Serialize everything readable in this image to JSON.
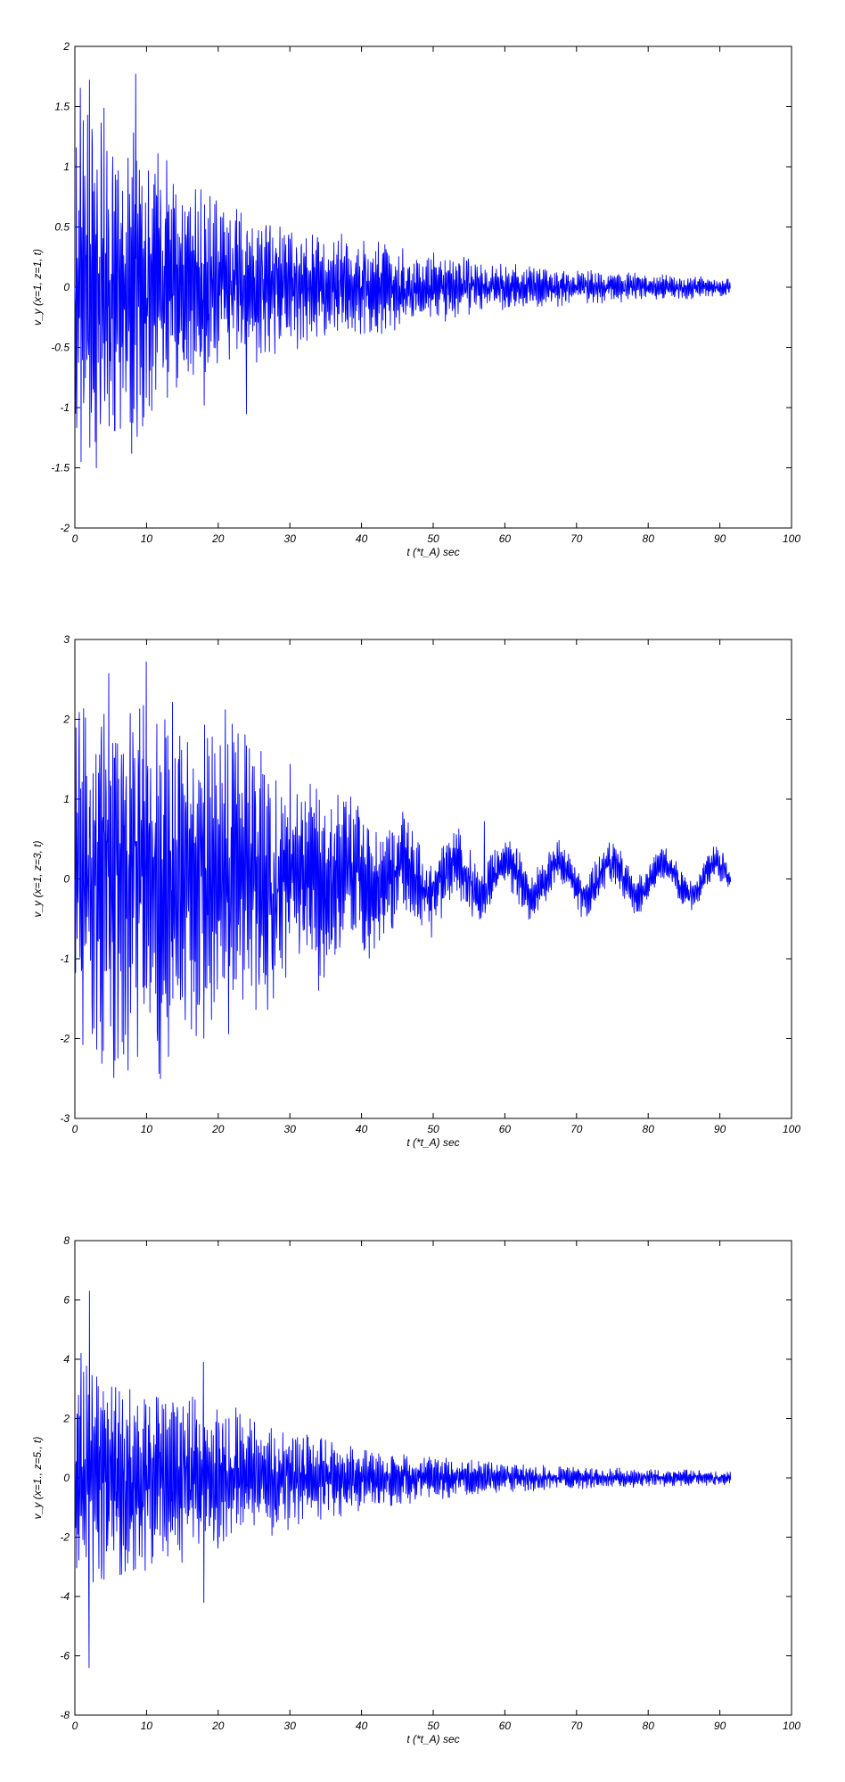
{
  "colors": {
    "trace": "#0000ff",
    "axes": "#000000",
    "background": "#ffffff"
  },
  "chart_data": [
    {
      "type": "line",
      "title": "",
      "xlabel": "t (*t_A) sec",
      "ylabel": "v_y (x=1, z=1, t)",
      "xlim": [
        0,
        100
      ],
      "ylim": [
        -2,
        2
      ],
      "x_ticks": [
        "0",
        "10",
        "20",
        "30",
        "40",
        "50",
        "60",
        "70",
        "80",
        "90",
        "100"
      ],
      "y_ticks": [
        "2",
        "1.5",
        "1",
        "0.5",
        "0",
        "-0.5",
        "-1",
        "-1.5",
        "-2"
      ],
      "grid": false,
      "series": [
        {
          "color": "#0000ff",
          "x_range": [
            0,
            91.5
          ],
          "envelope": [
            [
              0,
              1.75
            ],
            [
              10,
              1.2
            ],
            [
              20,
              0.75
            ],
            [
              30,
              0.55
            ],
            [
              40,
              0.42
            ],
            [
              50,
              0.3
            ],
            [
              60,
              0.2
            ],
            [
              70,
              0.15
            ],
            [
              80,
              0.12
            ],
            [
              91.5,
              0.08
            ]
          ],
          "peaks": [
            [
              8.5,
              1.77
            ],
            [
              3,
              -1.5
            ],
            [
              2,
              1.72
            ],
            [
              8,
              -1.38
            ],
            [
              18,
              -0.98
            ],
            [
              24,
              -1.05
            ]
          ]
        }
      ]
    },
    {
      "type": "line",
      "title": "",
      "xlabel": "t (*t_A) sec",
      "ylabel": "v_y (x=1, z=3, t)",
      "xlim": [
        0,
        100
      ],
      "ylim": [
        -3,
        3
      ],
      "x_ticks": [
        "0",
        "10",
        "20",
        "30",
        "40",
        "50",
        "60",
        "70",
        "80",
        "90",
        "100"
      ],
      "y_ticks": [
        "3",
        "2",
        "1",
        "0",
        "-1",
        "-2",
        "-3"
      ],
      "grid": false,
      "series": [
        {
          "color": "#0000ff",
          "x_range": [
            0,
            91.5
          ],
          "envelope": [
            [
              0,
              2.7
            ],
            [
              10,
              2.5
            ],
            [
              20,
              2.1
            ],
            [
              30,
              1.5
            ],
            [
              40,
              0.9
            ],
            [
              50,
              0.55
            ],
            [
              60,
              0.35
            ],
            [
              70,
              0.3
            ],
            [
              80,
              0.25
            ],
            [
              91.5,
              0.2
            ]
          ],
          "low_freq_amplitude": 0.2,
          "peaks": [
            [
              10,
              2.72
            ],
            [
              12,
              -2.5
            ],
            [
              21,
              2.12
            ],
            [
              57,
              0.72
            ]
          ]
        }
      ]
    },
    {
      "type": "line",
      "title": "",
      "xlabel": "t (*t_A) sec",
      "ylabel": "v_y (x=1., z=5., t)",
      "xlim": [
        0,
        100
      ],
      "ylim": [
        -8,
        8
      ],
      "x_ticks": [
        "0",
        "10",
        "20",
        "30",
        "40",
        "50",
        "60",
        "70",
        "80",
        "90",
        "100"
      ],
      "y_ticks": [
        "8",
        "6",
        "4",
        "2",
        "0",
        "-2",
        "-4",
        "-6",
        "-8"
      ],
      "grid": false,
      "series": [
        {
          "color": "#0000ff",
          "x_range": [
            0,
            91.5
          ],
          "envelope": [
            [
              0,
              4.5
            ],
            [
              5,
              3.6
            ],
            [
              10,
              3.2
            ],
            [
              20,
              2.6
            ],
            [
              30,
              1.8
            ],
            [
              40,
              1.1
            ],
            [
              50,
              0.75
            ],
            [
              60,
              0.5
            ],
            [
              70,
              0.4
            ],
            [
              80,
              0.32
            ],
            [
              91.5,
              0.25
            ]
          ],
          "peaks": [
            [
              2,
              6.3
            ],
            [
              2,
              -6.4
            ],
            [
              18,
              3.9
            ],
            [
              18,
              -4.2
            ]
          ]
        }
      ]
    }
  ]
}
